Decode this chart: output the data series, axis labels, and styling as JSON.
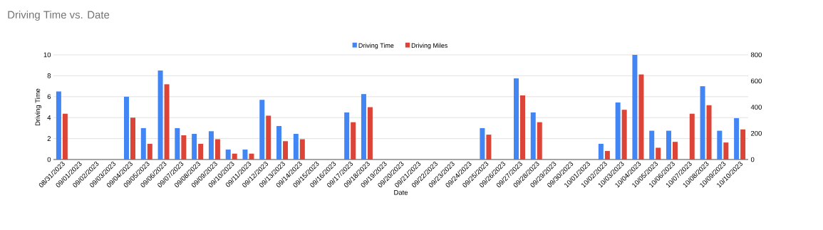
{
  "chart_data": {
    "type": "bar",
    "title": "Driving Time vs. Date",
    "xlabel": "Date",
    "ylabel": "Driving Time",
    "categories": [
      "08/31/2023",
      "09/01/2023",
      "09/02/2023",
      "09/03/2023",
      "09/04/2023",
      "09/05/2023",
      "09/06/2023",
      "09/07/2023",
      "09/08/2023",
      "09/09/2023",
      "09/10/2023",
      "09/11/2023",
      "09/12/2023",
      "09/13/2023",
      "09/14/2023",
      "09/15/2023",
      "09/16/2023",
      "09/17/2023",
      "09/18/2023",
      "09/19/2023",
      "09/20/2023",
      "09/21/2023",
      "09/22/2023",
      "09/23/2023",
      "09/24/2023",
      "09/25/2023",
      "09/26/2023",
      "09/27/2023",
      "09/28/2023",
      "09/29/2023",
      "09/30/2023",
      "10/01/2023",
      "10/02/2023",
      "10/03/2023",
      "10/04/2023",
      "10/05/2023",
      "10/06/2023",
      "10/07/2023",
      "10/08/2023",
      "10/09/2023",
      "10/10/2023"
    ],
    "series": [
      {
        "name": "Driving Time",
        "color": "#4285f4",
        "values": [
          6.5,
          null,
          null,
          null,
          6.0,
          3.0,
          8.5,
          3.0,
          2.45,
          2.7,
          0.95,
          0.95,
          5.7,
          3.2,
          2.45,
          null,
          null,
          4.5,
          6.25,
          null,
          null,
          null,
          null,
          null,
          null,
          3.0,
          null,
          7.75,
          4.5,
          null,
          null,
          null,
          1.5,
          5.45,
          10,
          2.75,
          2.75,
          null,
          7.0,
          2.75,
          3.95
        ]
      },
      {
        "name": "Driving Miles",
        "color": "#db4437",
        "axis": "y2",
        "values": [
          350,
          null,
          null,
          null,
          320,
          120,
          575,
          185,
          120,
          155,
          45,
          45,
          335,
          140,
          155,
          null,
          null,
          285,
          400,
          null,
          null,
          null,
          null,
          null,
          null,
          190,
          null,
          490,
          285,
          null,
          null,
          null,
          65,
          380,
          650,
          90,
          135,
          350,
          415,
          130,
          230
        ]
      }
    ],
    "ylim": [
      0,
      10
    ],
    "yticks": [
      0,
      2,
      4,
      6,
      8,
      10
    ],
    "y2lim": [
      0,
      800
    ],
    "y2ticks": [
      0,
      200,
      400,
      600,
      800
    ],
    "grid": "y",
    "legend": "top"
  }
}
